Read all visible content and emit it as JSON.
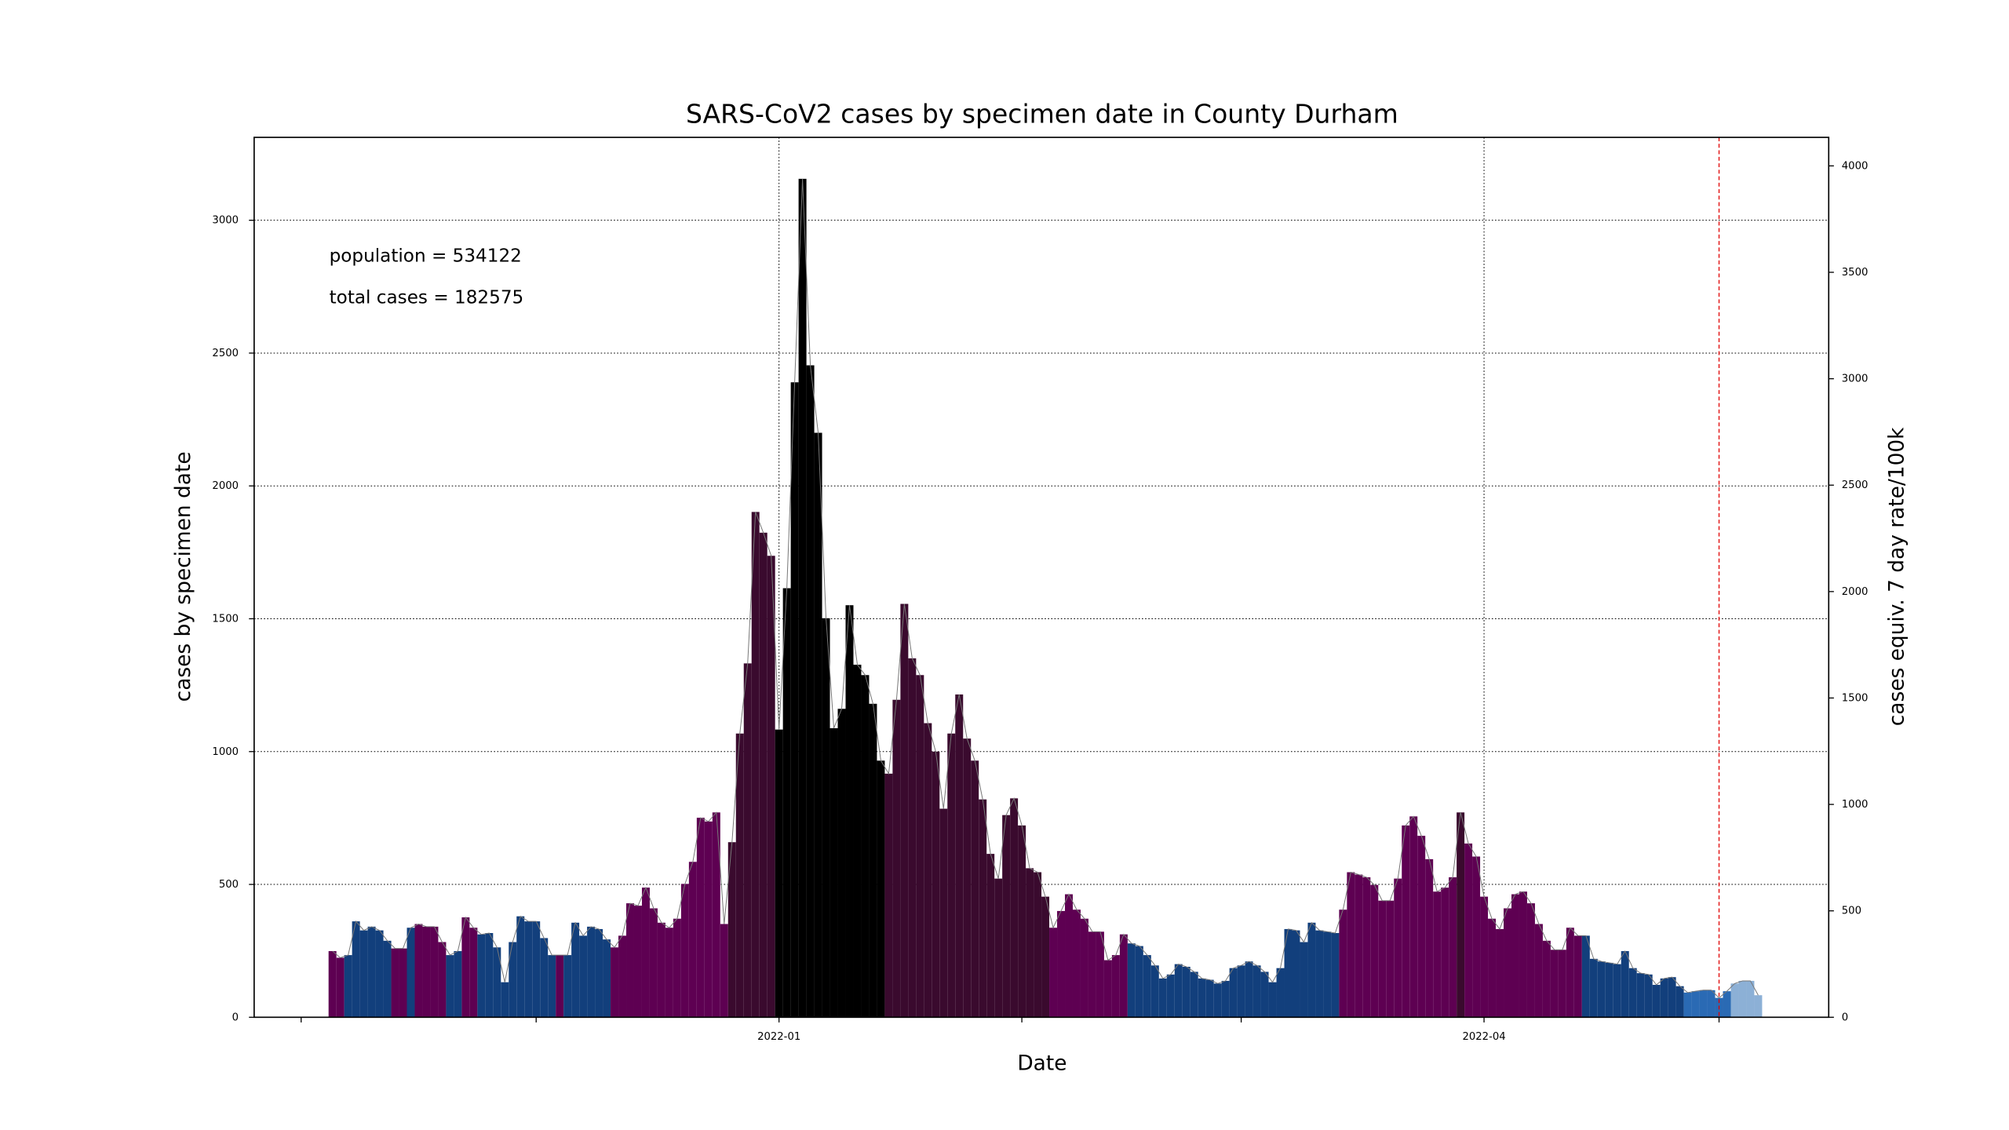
{
  "chart_data": {
    "type": "bar",
    "title": "SARS-CoV2 cases by specimen date in County Durham",
    "xlabel": "Date",
    "ylabel": "cases by specimen date",
    "y2label": "cases equiv. 7 day rate/100k",
    "annotations": [
      "population = 534122",
      "total cases = 182575"
    ],
    "x": [
      "2021-11-05",
      "2021-11-06",
      "2021-11-07",
      "2021-11-08",
      "2021-11-09",
      "2021-11-10",
      "2021-11-11",
      "2021-11-12",
      "2021-11-13",
      "2021-11-14",
      "2021-11-15",
      "2021-11-16",
      "2021-11-17",
      "2021-11-18",
      "2021-11-19",
      "2021-11-20",
      "2021-11-21",
      "2021-11-22",
      "2021-11-23",
      "2021-11-24",
      "2021-11-25",
      "2021-11-26",
      "2021-11-27",
      "2021-11-28",
      "2021-11-29",
      "2021-11-30",
      "2021-12-01",
      "2021-12-02",
      "2021-12-03",
      "2021-12-04",
      "2021-12-05",
      "2021-12-06",
      "2021-12-07",
      "2021-12-08",
      "2021-12-09",
      "2021-12-10",
      "2021-12-11",
      "2021-12-12",
      "2021-12-13",
      "2021-12-14",
      "2021-12-15",
      "2021-12-16",
      "2021-12-17",
      "2021-12-18",
      "2021-12-19",
      "2021-12-20",
      "2021-12-21",
      "2021-12-22",
      "2021-12-23",
      "2021-12-24",
      "2021-12-25",
      "2021-12-26",
      "2021-12-27",
      "2021-12-28",
      "2021-12-29",
      "2021-12-30",
      "2021-12-31",
      "2022-01-01",
      "2022-01-02",
      "2022-01-03",
      "2022-01-04",
      "2022-01-05",
      "2022-01-06",
      "2022-01-07",
      "2022-01-08",
      "2022-01-09",
      "2022-01-10",
      "2022-01-11",
      "2022-01-12",
      "2022-01-13",
      "2022-01-14",
      "2022-01-15",
      "2022-01-16",
      "2022-01-17",
      "2022-01-18",
      "2022-01-19",
      "2022-01-20",
      "2022-01-21",
      "2022-01-22",
      "2022-01-23",
      "2022-01-24",
      "2022-01-25",
      "2022-01-26",
      "2022-01-27",
      "2022-01-28",
      "2022-01-29",
      "2022-01-30",
      "2022-01-31",
      "2022-02-01",
      "2022-02-02",
      "2022-02-03",
      "2022-02-04",
      "2022-02-05",
      "2022-02-06",
      "2022-02-07",
      "2022-02-08",
      "2022-02-09",
      "2022-02-10",
      "2022-02-11",
      "2022-02-12",
      "2022-02-13",
      "2022-02-14",
      "2022-02-15",
      "2022-02-16",
      "2022-02-17",
      "2022-02-18",
      "2022-02-19",
      "2022-02-20",
      "2022-02-21",
      "2022-02-22",
      "2022-02-23",
      "2022-02-24",
      "2022-02-25",
      "2022-02-26",
      "2022-02-27",
      "2022-02-28",
      "2022-03-01",
      "2022-03-02",
      "2022-03-03",
      "2022-03-04",
      "2022-03-05",
      "2022-03-06",
      "2022-03-07",
      "2022-03-08",
      "2022-03-09",
      "2022-03-10",
      "2022-03-11",
      "2022-03-12",
      "2022-03-13",
      "2022-03-14",
      "2022-03-15",
      "2022-03-16",
      "2022-03-17",
      "2022-03-18",
      "2022-03-19",
      "2022-03-20",
      "2022-03-21",
      "2022-03-22",
      "2022-03-23",
      "2022-03-24",
      "2022-03-25",
      "2022-03-26",
      "2022-03-27",
      "2022-03-28",
      "2022-03-29",
      "2022-03-30",
      "2022-03-31",
      "2022-04-01",
      "2022-04-02",
      "2022-04-03",
      "2022-04-04",
      "2022-04-05",
      "2022-04-06",
      "2022-04-07",
      "2022-04-08",
      "2022-04-09",
      "2022-04-10",
      "2022-04-11",
      "2022-04-12",
      "2022-04-13",
      "2022-04-14",
      "2022-04-15",
      "2022-04-16",
      "2022-04-17",
      "2022-04-18",
      "2022-04-19",
      "2022-04-20",
      "2022-04-21",
      "2022-04-22",
      "2022-04-23",
      "2022-04-24",
      "2022-04-25",
      "2022-04-26",
      "2022-04-27",
      "2022-04-28",
      "2022-04-29",
      "2022-04-30",
      "2022-05-01",
      "2022-05-02",
      "2022-05-03",
      "2022-05-04",
      "2022-05-05",
      "2022-05-06"
    ],
    "series": [
      {
        "name": "cases",
        "values": [
          249,
          224,
          234,
          361,
          327,
          341,
          327,
          288,
          259,
          259,
          337,
          351,
          341,
          341,
          283,
          234,
          249,
          376,
          337,
          312,
          317,
          263,
          132,
          283,
          380,
          361,
          361,
          298,
          234,
          234,
          234,
          356,
          307,
          341,
          332,
          293,
          263,
          307,
          429,
          420,
          488,
          410,
          356,
          337,
          371,
          502,
          585,
          751,
          737,
          771,
          351,
          659,
          1068,
          1332,
          1902,
          1824,
          1737,
          1083,
          1615,
          2390,
          3156,
          2454,
          2200,
          1502,
          1088,
          1161,
          1551,
          1327,
          1288,
          1180,
          966,
          917,
          1195,
          1556,
          1351,
          1288,
          1107,
          1000,
          785,
          1068,
          1215,
          1049,
          966,
          820,
          615,
          522,
          761,
          824,
          722,
          561,
          546,
          454,
          337,
          400,
          463,
          405,
          371,
          322,
          322,
          215,
          234,
          312,
          278,
          268,
          234,
          195,
          146,
          161,
          200,
          190,
          171,
          146,
          141,
          127,
          137,
          185,
          195,
          210,
          195,
          171,
          132,
          185,
          332,
          327,
          283,
          356,
          327,
          322,
          317,
          405,
          546,
          537,
          527,
          498,
          439,
          439,
          522,
          722,
          756,
          683,
          595,
          473,
          488,
          527,
          771,
          654,
          605,
          454,
          371,
          332,
          410,
          463,
          473,
          429,
          351,
          288,
          254,
          254,
          337,
          307,
          307,
          220,
          210,
          205,
          200,
          249,
          185,
          166,
          161,
          122,
          146,
          151,
          117,
          93,
          98,
          102,
          102,
          73,
          98,
          127,
          137,
          137,
          83
        ],
        "colors": [
          "#5e0052",
          "#5e0052",
          "#123f7c",
          "#123f7c",
          "#123f7c",
          "#123f7c",
          "#123f7c",
          "#123f7c",
          "#5e0052",
          "#5e0052",
          "#123f7c",
          "#5e0052",
          "#5e0052",
          "#5e0052",
          "#5e0052",
          "#123f7c",
          "#123f7c",
          "#5e0052",
          "#5e0052",
          "#123f7c",
          "#123f7c",
          "#123f7c",
          "#123f7c",
          "#123f7c",
          "#123f7c",
          "#123f7c",
          "#123f7c",
          "#123f7c",
          "#123f7c",
          "#5e0052",
          "#123f7c",
          "#123f7c",
          "#123f7c",
          "#123f7c",
          "#123f7c",
          "#123f7c",
          "#5e0052",
          "#5e0052",
          "#5e0052",
          "#5e0052",
          "#5e0052",
          "#5e0052",
          "#5e0052",
          "#5e0052",
          "#5e0052",
          "#5e0052",
          "#5e0052",
          "#5e0052",
          "#5e0052",
          "#5e0052",
          "#5e0052",
          "#3a0a2e",
          "#3a0a2e",
          "#3a0a2e",
          "#3a0a2e",
          "#3a0a2e",
          "#3a0a2e",
          "#000000",
          "#000000",
          "#000000",
          "#000000",
          "#000000",
          "#000000",
          "#000000",
          "#000000",
          "#000000",
          "#000000",
          "#000000",
          "#000000",
          "#000000",
          "#000000",
          "#3a0a2e",
          "#3a0a2e",
          "#3a0a2e",
          "#3a0a2e",
          "#3a0a2e",
          "#3a0a2e",
          "#3a0a2e",
          "#3a0a2e",
          "#3a0a2e",
          "#3a0a2e",
          "#3a0a2e",
          "#3a0a2e",
          "#3a0a2e",
          "#3a0a2e",
          "#3a0a2e",
          "#3a0a2e",
          "#3a0a2e",
          "#3a0a2e",
          "#3a0a2e",
          "#3a0a2e",
          "#3a0a2e",
          "#5e0052",
          "#5e0052",
          "#5e0052",
          "#5e0052",
          "#5e0052",
          "#5e0052",
          "#5e0052",
          "#5e0052",
          "#5e0052",
          "#5e0052",
          "#123f7c",
          "#123f7c",
          "#123f7c",
          "#123f7c",
          "#123f7c",
          "#123f7c",
          "#123f7c",
          "#123f7c",
          "#123f7c",
          "#123f7c",
          "#123f7c",
          "#123f7c",
          "#123f7c",
          "#123f7c",
          "#123f7c",
          "#123f7c",
          "#123f7c",
          "#123f7c",
          "#123f7c",
          "#123f7c",
          "#123f7c",
          "#123f7c",
          "#123f7c",
          "#123f7c",
          "#123f7c",
          "#123f7c",
          "#123f7c",
          "#5e0052",
          "#5e0052",
          "#5e0052",
          "#5e0052",
          "#5e0052",
          "#5e0052",
          "#5e0052",
          "#5e0052",
          "#5e0052",
          "#5e0052",
          "#5e0052",
          "#5e0052",
          "#5e0052",
          "#5e0052",
          "#5e0052",
          "#3a0a2e",
          "#5e0052",
          "#5e0052",
          "#5e0052",
          "#5e0052",
          "#5e0052",
          "#5e0052",
          "#5e0052",
          "#5e0052",
          "#5e0052",
          "#5e0052",
          "#5e0052",
          "#5e0052",
          "#5e0052",
          "#5e0052",
          "#5e0052",
          "#123f7c",
          "#123f7c",
          "#123f7c",
          "#123f7c",
          "#123f7c",
          "#123f7c",
          "#123f7c",
          "#123f7c",
          "#123f7c",
          "#123f7c",
          "#123f7c",
          "#123f7c",
          "#123f7c",
          "#2a6ab4",
          "#2a6ab4",
          "#2a6ab4",
          "#2a6ab4",
          "#2a6ab4",
          "#2a6ab4",
          "#8cb0d6",
          "#8cb0d6",
          "#8cb0d6",
          "#8cb0d6"
        ]
      }
    ],
    "line_color": "#777777",
    "xlim": [
      "2021-10-26",
      "2022-05-15"
    ],
    "xticks": [
      {
        "value": "2021-11",
        "label": null
      },
      {
        "value": "2021-12",
        "label": null
      },
      "2022-01",
      {
        "value": "2022-02",
        "label": null
      },
      {
        "value": "2022-03",
        "label": null
      },
      "2022-04",
      {
        "value": "2022-05",
        "label": null
      }
    ],
    "ylim": [
      0,
      3312
    ],
    "yticks": [
      0,
      500,
      1000,
      1500,
      2000,
      2500,
      3000
    ],
    "y2lim": [
      0,
      4134
    ],
    "y2ticks": [
      0,
      500,
      1000,
      1500,
      2000,
      2500,
      3000,
      3500,
      4000
    ],
    "grid": true,
    "reference_line": {
      "x": "2022-05-01",
      "color": "#e00000"
    }
  }
}
